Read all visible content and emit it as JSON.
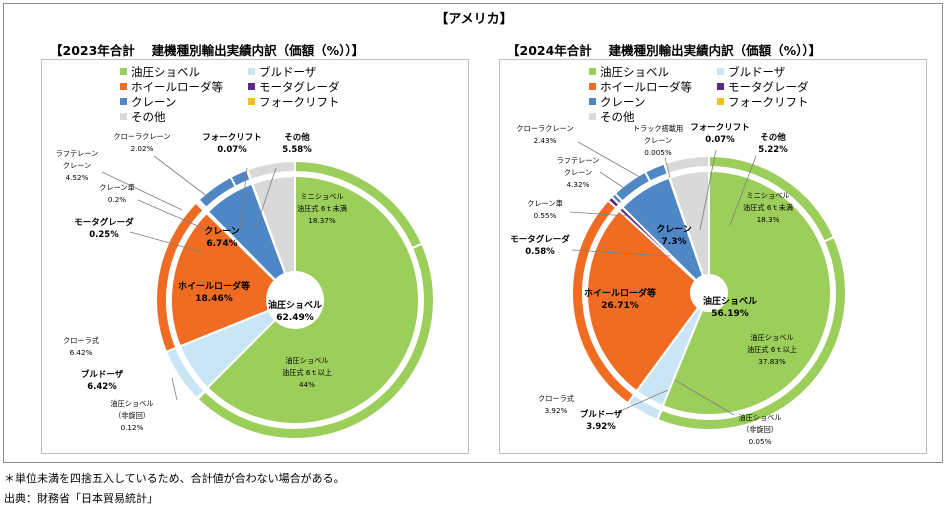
{
  "title": "【アメリカ】",
  "footnotes": [
    "＊単位未満を四捨五入しているため、合計値が合わない場合がある。",
    "出典：財務省「日本貿易統計」"
  ],
  "colors": {
    "shovel": "#9bce5a",
    "bulldozer": "#c9e5f6",
    "wheel_loader": "#ef6c22",
    "motor_grader": "#5b2b86",
    "crane": "#4f86c6",
    "forklift": "#f0bf20",
    "other": "#d9d9d9"
  },
  "chart_data": [
    {
      "type": "pie",
      "subtype": "nested-donut",
      "title": "【2023年合計　 建機種別輸出実績内訳（価額（%））】",
      "legend": [
        "油圧ショベル",
        "ブルドーザ",
        "ホイールローダ等",
        "モータグレーダ",
        "クレーン",
        "フォークリフト",
        "その他"
      ],
      "inner": [
        {
          "category": "油圧ショベル",
          "value": 62.49,
          "name": "油圧ショベル",
          "label": "62.49%"
        },
        {
          "category": "ブルドーザ",
          "value": 6.42,
          "name": "ブルドーザ",
          "label": "6.42%"
        },
        {
          "category": "ホイールローダ等",
          "value": 18.46,
          "name": "ホイールローダ等",
          "label": "18.46%"
        },
        {
          "category": "モータグレーダ",
          "value": 0.25,
          "name": "モータグレーダ",
          "label": "0.25%"
        },
        {
          "category": "クレーン",
          "value": 6.74,
          "name": "クレーン",
          "label": "6.74%"
        },
        {
          "category": "フォークリフト",
          "value": 0.07,
          "name": "フォークリフト",
          "label": "0.07%"
        },
        {
          "category": "その他",
          "value": 5.58,
          "name": "その他",
          "label": "5.58%"
        }
      ],
      "outer": [
        {
          "category": "油圧ショベル",
          "value": 18.37,
          "name": "ミニショベル",
          "sub": "油圧式 6ｔ未満",
          "label": "18.37%"
        },
        {
          "category": "油圧ショベル",
          "value": 44.0,
          "name": "油圧ショベル",
          "sub": "油圧式 6ｔ以上",
          "label": "44%"
        },
        {
          "category": "油圧ショベル",
          "value": 0.12,
          "name": "油圧ショベル",
          "sub": "（非旋回）",
          "label": "0.12%"
        },
        {
          "category": "ブルドーザ",
          "value": 6.42,
          "name": "クローラ式",
          "label": "6.42%"
        },
        {
          "category": "ホイールローダ等",
          "value": 18.46,
          "name": "ホイールローダ等",
          "label": ""
        },
        {
          "category": "モータグレーダ",
          "value": 0.25,
          "name": "モータグレーダ",
          "label": ""
        },
        {
          "category": "クレーン",
          "value": 0.2,
          "name": "クレーン車",
          "label": "0.2%"
        },
        {
          "category": "クレーン",
          "value": 4.52,
          "name": "ラフテレーン クレーン",
          "label": "4.52%"
        },
        {
          "category": "クレーン",
          "value": 2.02,
          "name": "クローラクレーン",
          "label": "2.02%"
        },
        {
          "category": "フォークリフト",
          "value": 0.07,
          "name": "フォークリフト",
          "label": ""
        },
        {
          "category": "その他",
          "value": 5.58,
          "name": "その他",
          "label": ""
        }
      ]
    },
    {
      "type": "pie",
      "subtype": "nested-donut",
      "title": "【2024年合計　 建機種別輸出実績内訳（価額（%））】",
      "legend": [
        "油圧ショベル",
        "ブルドーザ",
        "ホイールローダ等",
        "モータグレーダ",
        "クレーン",
        "フォークリフト",
        "その他"
      ],
      "inner": [
        {
          "category": "油圧ショベル",
          "value": 56.19,
          "name": "油圧ショベル",
          "label": "56.19%"
        },
        {
          "category": "ブルドーザ",
          "value": 3.92,
          "name": "ブルドーザ",
          "label": "3.92%"
        },
        {
          "category": "ホイールローダ等",
          "value": 26.71,
          "name": "ホイールローダ等",
          "label": "26.71%"
        },
        {
          "category": "モータグレーダ",
          "value": 0.58,
          "name": "モータグレーダ",
          "label": "0.58%"
        },
        {
          "category": "クレーン",
          "value": 7.3,
          "name": "クレーン",
          "label": "7.3%"
        },
        {
          "category": "フォークリフト",
          "value": 0.07,
          "name": "フォークリフト",
          "label": "0.07%"
        },
        {
          "category": "その他",
          "value": 5.22,
          "name": "その他",
          "label": "5.22%"
        }
      ],
      "outer": [
        {
          "category": "油圧ショベル",
          "value": 18.3,
          "name": "ミニショベル",
          "sub": "油圧式 6ｔ未満",
          "label": "18.3%"
        },
        {
          "category": "油圧ショベル",
          "value": 37.83,
          "name": "油圧ショベル",
          "sub": "油圧式 6ｔ以上",
          "label": "37.83%"
        },
        {
          "category": "油圧ショベル",
          "value": 0.05,
          "name": "油圧ショベル",
          "sub": "（非旋回）",
          "label": "0.05%"
        },
        {
          "category": "ブルドーザ",
          "value": 3.92,
          "name": "クローラ式",
          "label": "3.92%"
        },
        {
          "category": "ホイールローダ等",
          "value": 26.71,
          "name": "ホイールローダ等",
          "label": ""
        },
        {
          "category": "モータグレーダ",
          "value": 0.58,
          "name": "モータグレーダ",
          "label": ""
        },
        {
          "category": "クレーン",
          "value": 0.55,
          "name": "クレーン車",
          "label": "0.55%"
        },
        {
          "category": "クレーン",
          "value": 4.32,
          "name": "ラフテレーン クレーン",
          "label": "4.32%"
        },
        {
          "category": "クレーン",
          "value": 2.43,
          "name": "クローラクレーン",
          "label": "2.43%"
        },
        {
          "category": "クレーン",
          "value": 0.005,
          "name": "トラック搭載用 クレーン",
          "label": "0.005%"
        },
        {
          "category": "フォークリフト",
          "value": 0.07,
          "name": "フォークリフト",
          "label": ""
        },
        {
          "category": "その他",
          "value": 5.22,
          "name": "その他",
          "label": ""
        }
      ]
    }
  ]
}
